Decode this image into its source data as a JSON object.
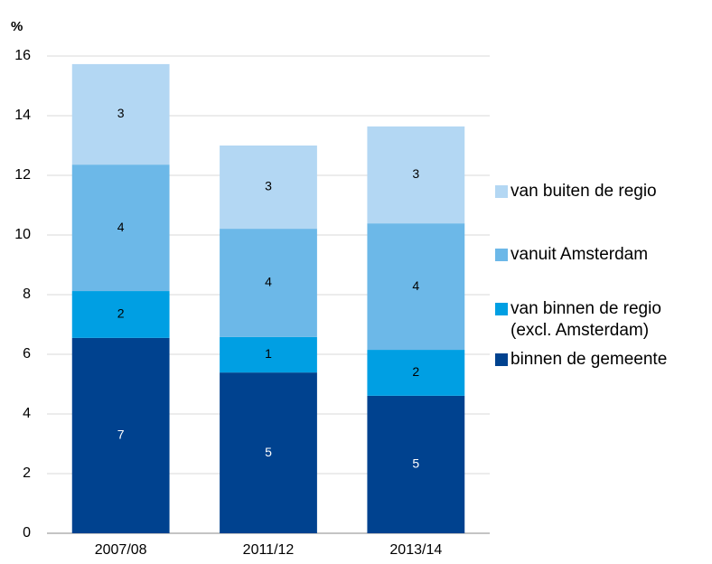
{
  "chart_data": {
    "type": "stacked_bar",
    "y_label": "%",
    "categories": [
      "2007/08",
      "2011/12",
      "2013/14"
    ],
    "series": [
      {
        "name": "binnen de gemeente",
        "color": "#00428f",
        "values": [
          6.55,
          5.39,
          4.61
        ],
        "value_labels": [
          "7",
          "5",
          "5"
        ]
      },
      {
        "name": "van binnen de regio (excl. Amsterdam)",
        "color": "#009fe3",
        "values": [
          1.57,
          1.19,
          1.54
        ],
        "value_labels": [
          "2",
          "1",
          "2"
        ]
      },
      {
        "name": "vanuit Amsterdam",
        "color": "#6cb8e8",
        "values": [
          4.24,
          3.63,
          4.24
        ],
        "value_labels": [
          "4",
          "4",
          "4"
        ]
      },
      {
        "name": "van buiten de regio",
        "color": "#b3d7f3",
        "values": [
          3.37,
          2.79,
          3.25
        ],
        "value_labels": [
          "3",
          "3",
          "3"
        ]
      }
    ],
    "ylim": [
      0,
      16
    ],
    "yticks": [
      0,
      2,
      4,
      6,
      8,
      10,
      12,
      14,
      16
    ],
    "grid": true,
    "legend": "right"
  }
}
